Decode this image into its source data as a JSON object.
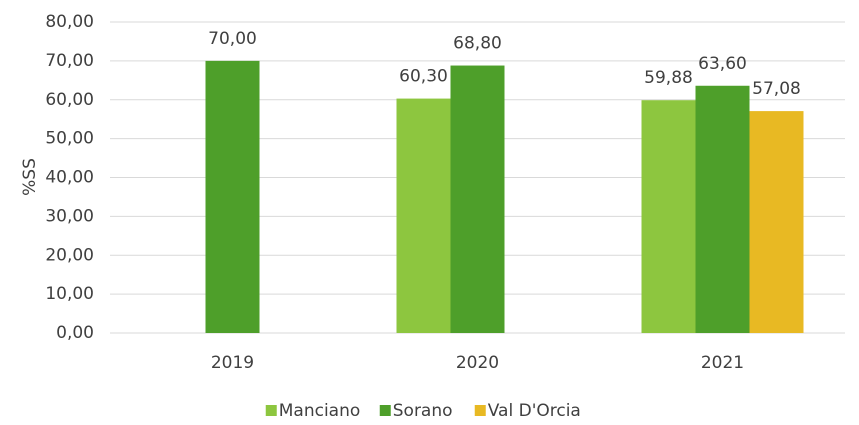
{
  "chart_data": {
    "type": "bar",
    "y_label": "%SS",
    "categories": [
      "2019",
      "2020",
      "2021"
    ],
    "series": [
      {
        "name": "Manciano",
        "color": "#8dc63f",
        "values": [
          null,
          60.3,
          59.88
        ],
        "value_labels": [
          null,
          "60,30",
          "59,88"
        ]
      },
      {
        "name": "Sorano",
        "color": "#4e9f2a",
        "values": [
          70.0,
          68.8,
          63.6
        ],
        "value_labels": [
          "70,00",
          "68,80",
          "63,60"
        ]
      },
      {
        "name": "Val D'Orcia",
        "color": "#e8b923",
        "values": [
          null,
          null,
          57.08
        ],
        "value_labels": [
          null,
          null,
          "57,08"
        ]
      }
    ],
    "ylim": [
      0,
      80
    ],
    "yticks": [
      {
        "value": 0,
        "label": "0,00"
      },
      {
        "value": 10,
        "label": "10,00"
      },
      {
        "value": 20,
        "label": "20,00"
      },
      {
        "value": 30,
        "label": "30,00"
      },
      {
        "value": 40,
        "label": "40,00"
      },
      {
        "value": 50,
        "label": "50,00"
      },
      {
        "value": 60,
        "label": "60,00"
      },
      {
        "value": 70,
        "label": "70,00"
      },
      {
        "value": 80,
        "label": "80,00"
      }
    ],
    "grid": true,
    "legend": "bottom"
  }
}
